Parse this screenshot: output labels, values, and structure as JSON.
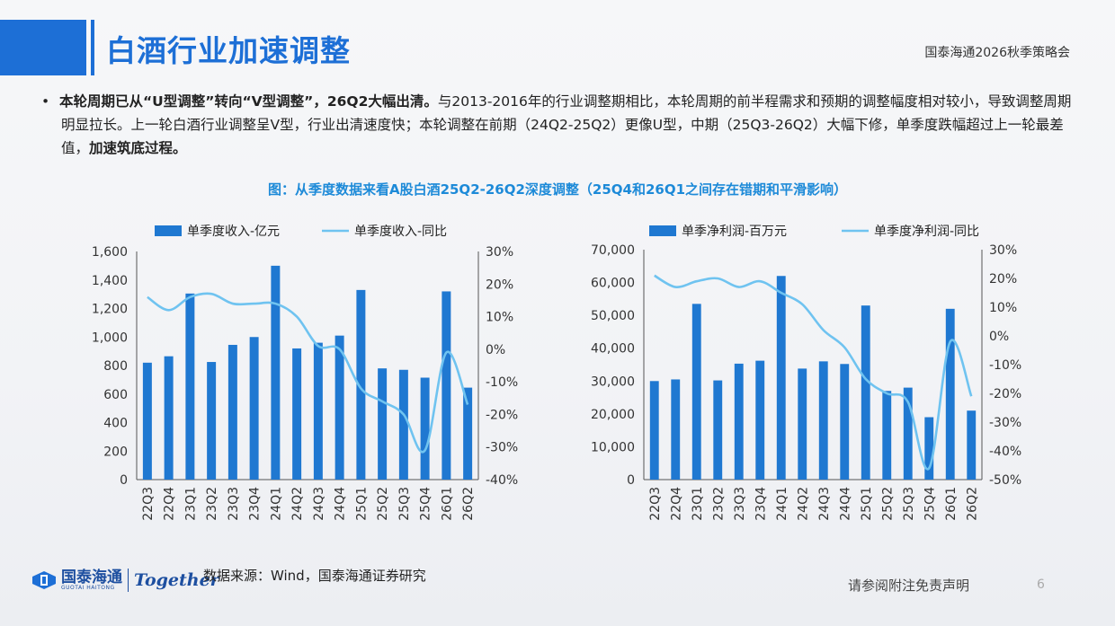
{
  "header": {
    "title": "白酒行业加速调整",
    "report_name": "国泰海通2026秋季策略会"
  },
  "bullet": {
    "bold_lead": "本轮周期已从“U型调整”转向“V型调整”，26Q2大幅出清。",
    "body": "与2013-2016年的行业调整期相比，本轮周期的前半程需求和预期的调整幅度相对较小，导致调整周期明显拉长。上一轮白酒行业调整呈V型，行业出清速度快；本轮调整在前期（24Q2-25Q2）更像U型，中期（25Q3-26Q2）大幅下修，单季度跌幅超过上一轮最差值，",
    "bold_tail": "加速筑底过程。"
  },
  "figure_title": "图：从季度数据来看A股白酒25Q2-26Q2深度调整（25Q4和26Q1之间存在错期和平滑影响）",
  "colors": {
    "bar": "#1f78d1",
    "line": "#6fc3f0",
    "axis": "#555555"
  },
  "chart_data": [
    {
      "type": "bar",
      "categories": [
        "22Q3",
        "22Q4",
        "23Q1",
        "23Q2",
        "23Q3",
        "23Q4",
        "24Q1",
        "24Q2",
        "24Q3",
        "24Q4",
        "25Q1",
        "25Q2",
        "25Q3",
        "25Q4",
        "26Q1",
        "26Q2"
      ],
      "series": [
        {
          "name": "单季度收入-亿元",
          "type": "bar",
          "axis": "left",
          "values": [
            820,
            865,
            1305,
            825,
            945,
            1000,
            1500,
            920,
            960,
            1010,
            1330,
            780,
            770,
            715,
            1320,
            645
          ]
        },
        {
          "name": "单季度收入-同比",
          "type": "line",
          "axis": "right",
          "values": [
            16,
            12,
            16,
            17,
            14,
            14,
            14,
            10,
            1,
            0,
            -12,
            -16,
            -20,
            -31,
            -1,
            -17
          ]
        }
      ],
      "ylim_left": [
        0,
        1600
      ],
      "yticks_left": [
        "0",
        "200",
        "400",
        "600",
        "800",
        "1,000",
        "1,200",
        "1,400",
        "1,600"
      ],
      "ylim_right": [
        -40,
        30
      ],
      "yticks_right": [
        "-40%",
        "-30%",
        "-20%",
        "-10%",
        "0%",
        "10%",
        "20%",
        "30%"
      ],
      "legend": "top"
    },
    {
      "type": "bar",
      "categories": [
        "22Q3",
        "22Q4",
        "23Q1",
        "23Q2",
        "23Q3",
        "23Q4",
        "24Q1",
        "24Q2",
        "24Q3",
        "24Q4",
        "25Q1",
        "25Q2",
        "25Q3",
        "25Q4",
        "26Q1",
        "26Q2"
      ],
      "series": [
        {
          "name": "单季净利润-百万元",
          "type": "bar",
          "axis": "left",
          "values": [
            30000,
            30500,
            53500,
            30200,
            35300,
            36200,
            62000,
            33800,
            36000,
            35200,
            53000,
            27000,
            28000,
            19000,
            52000,
            21000
          ]
        },
        {
          "name": "单季度净利润-同比",
          "type": "line",
          "axis": "right",
          "values": [
            21,
            17,
            19,
            20,
            17,
            19,
            15,
            11,
            2,
            -4,
            -15,
            -20,
            -23,
            -46,
            -2,
            -21
          ]
        }
      ],
      "ylim_left": [
        0,
        70000
      ],
      "yticks_left": [
        "0",
        "10,000",
        "20,000",
        "30,000",
        "40,000",
        "50,000",
        "60,000",
        "70,000"
      ],
      "ylim_right": [
        -50,
        30
      ],
      "yticks_right": [
        "-50%",
        "-40%",
        "-30%",
        "-20%",
        "-10%",
        "0%",
        "10%",
        "20%",
        "30%"
      ],
      "legend": "top"
    }
  ],
  "footer": {
    "logo_cn": "国泰海通",
    "logo_en": "GUOTAI HAITONG",
    "together": "Together",
    "source": "数据来源：Wind，国泰海通证券研究",
    "disclaimer": "请参阅附注免责声明",
    "page_number": "6"
  }
}
